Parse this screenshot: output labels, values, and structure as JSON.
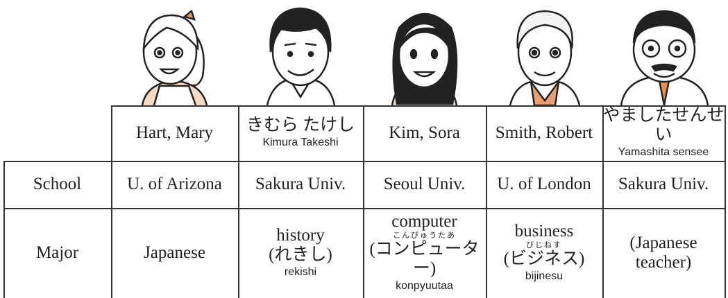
{
  "header": [
    {
      "name": "Hart, Mary"
    },
    {
      "name": "きむら たけし",
      "romaji": "Kimura Takeshi"
    },
    {
      "name": "Kim, Sora"
    },
    {
      "name": "Smith, Robert"
    },
    {
      "name": "やましたせんせい",
      "romaji": "Yamashita sensee"
    }
  ],
  "rows": [
    {
      "label": "School",
      "cells": [
        {
          "lines": [
            "U. of Arizona"
          ]
        },
        {
          "lines": [
            "Sakura Univ."
          ]
        },
        {
          "lines": [
            "Seoul Univ."
          ]
        },
        {
          "lines": [
            "U. of London"
          ]
        },
        {
          "lines": [
            "Sakura Univ."
          ]
        }
      ]
    },
    {
      "label": "Major",
      "cells": [
        {
          "lines": [
            "Japanese"
          ]
        },
        {
          "lines": [
            "history",
            "(れきし)"
          ],
          "romaji": "rekishi"
        },
        {
          "lines": [
            "computer",
            "(コンピューター)"
          ],
          "ruby": "こんぴゅうたあ",
          "romaji": "konpyuutaa"
        },
        {
          "lines": [
            "business",
            "(ビジネス)"
          ],
          "ruby": "びじねす",
          "romaji": "bijinesu"
        },
        {
          "lines": [
            "(Japanese",
            "teacher)"
          ]
        }
      ]
    }
  ]
}
